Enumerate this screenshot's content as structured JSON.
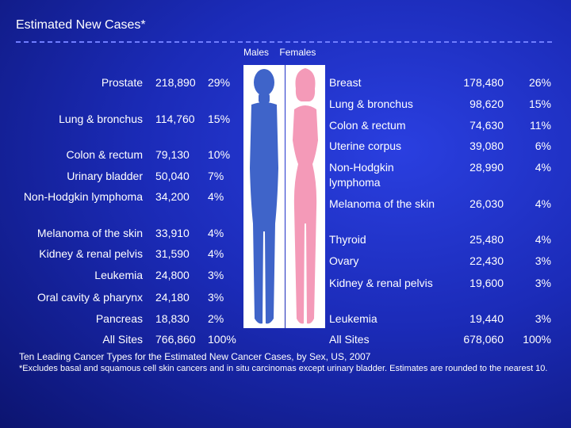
{
  "title": "Estimated New Cases*",
  "headers": {
    "males": "Males",
    "females": "Females"
  },
  "males": [
    {
      "site": "Prostate",
      "cases": "218,890",
      "pct": "29%"
    },
    {
      "site": "Lung & bronchus",
      "cases": "114,760",
      "pct": "15%"
    },
    {
      "site": "Colon & rectum",
      "cases": "79,130",
      "pct": "10%"
    },
    {
      "site": "Urinary bladder",
      "cases": "50,040",
      "pct": "7%"
    },
    {
      "site": "Non-Hodgkin lymphoma",
      "cases": "34,200",
      "pct": "4%"
    },
    {
      "site": "Melanoma of the skin",
      "cases": "33,910",
      "pct": "4%"
    },
    {
      "site": "Kidney & renal pelvis",
      "cases": "31,590",
      "pct": "4%"
    },
    {
      "site": "Leukemia",
      "cases": "24,800",
      "pct": "3%"
    },
    {
      "site": "Oral cavity & pharynx",
      "cases": "24,180",
      "pct": "3%"
    },
    {
      "site": "Pancreas",
      "cases": "18,830",
      "pct": "2%"
    },
    {
      "site": "All Sites",
      "cases": "766,860",
      "pct": "100%"
    }
  ],
  "females": [
    {
      "site": "Breast",
      "cases": "178,480",
      "pct": "26%"
    },
    {
      "site": "Lung & bronchus",
      "cases": "98,620",
      "pct": "15%"
    },
    {
      "site": "Colon & rectum",
      "cases": "74,630",
      "pct": "11%"
    },
    {
      "site": "Uterine corpus",
      "cases": "39,080",
      "pct": "6%"
    },
    {
      "site": "Non-Hodgkin lymphoma",
      "cases": "28,990",
      "pct": "4%"
    },
    {
      "site": "Melanoma of the skin",
      "cases": "26,030",
      "pct": "4%"
    },
    {
      "site": "Thyroid",
      "cases": "25,480",
      "pct": "4%"
    },
    {
      "site": "Ovary",
      "cases": "22,430",
      "pct": "3%"
    },
    {
      "site": "Kidney & renal pelvis",
      "cases": "19,600",
      "pct": "3%"
    },
    {
      "site": "Leukemia",
      "cases": "19,440",
      "pct": "3%"
    },
    {
      "site": "All Sites",
      "cases": "678,060",
      "pct": "100%"
    }
  ],
  "caption": "Ten Leading Cancer Types for the Estimated New Cancer Cases, by Sex, US, 2007",
  "footnote": "*Excludes basal and squamous cell skin cancers and in situ carcinomas except urinary bladder. Estimates are rounded to the nearest 10.",
  "colors": {
    "male_figure": "#3f64c9",
    "female_figure": "#f49ab8",
    "figure_panel": "#ffffff"
  }
}
